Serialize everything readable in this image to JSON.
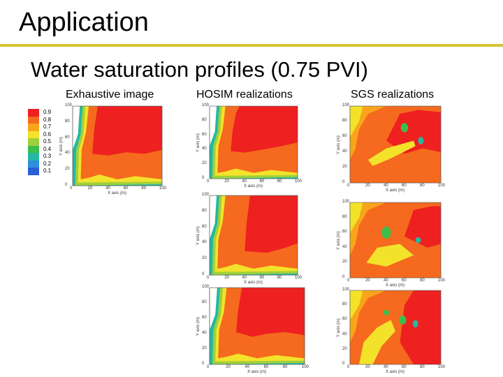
{
  "slide": {
    "title": "Application",
    "subtitle": "Water saturation profiles (0.75 PVI)"
  },
  "columns": [
    {
      "label": "Exhaustive image"
    },
    {
      "label": "HOSIM realizations"
    },
    {
      "label": "SGS realizations"
    }
  ],
  "legend": {
    "levels": [
      {
        "label": "0.9",
        "color": "#ee2020"
      },
      {
        "label": "0.8",
        "color": "#f56a1e"
      },
      {
        "label": "0.7",
        "color": "#f9a51c"
      },
      {
        "label": "0.6",
        "color": "#f2e32a"
      },
      {
        "label": "0.5",
        "color": "#9fd03c"
      },
      {
        "label": "0.4",
        "color": "#3cbf4a"
      },
      {
        "label": "0.3",
        "color": "#24b8a4"
      },
      {
        "label": "0.2",
        "color": "#2e8fdc"
      },
      {
        "label": "0.1",
        "color": "#2a5fd8"
      }
    ]
  },
  "axes": {
    "x_label": "X axis (m)",
    "y_label": "Y axis (m)",
    "ticks": [
      "0",
      "20",
      "40",
      "60",
      "80",
      "100"
    ]
  }
}
